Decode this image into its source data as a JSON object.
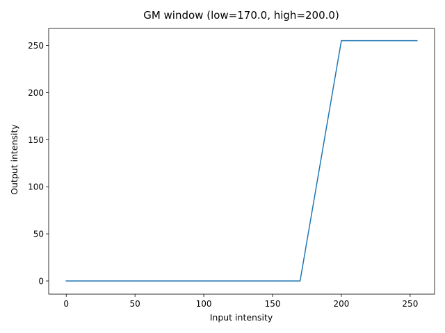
{
  "chart_data": {
    "type": "line",
    "title": "GM window (low=170.0, high=200.0)",
    "xlabel": "Input intensity",
    "ylabel": "Output intensity",
    "xlim": [
      -12.75,
      267.75
    ],
    "ylim": [
      -14.0,
      268.0
    ],
    "xticks": [
      0,
      50,
      100,
      150,
      200,
      250
    ],
    "yticks": [
      0,
      50,
      100,
      150,
      200,
      250
    ],
    "grid": false,
    "line_color": "#1f77b4",
    "series": [
      {
        "x": [
          0,
          170,
          200,
          255
        ],
        "y": [
          0,
          0,
          255,
          255
        ]
      }
    ]
  }
}
